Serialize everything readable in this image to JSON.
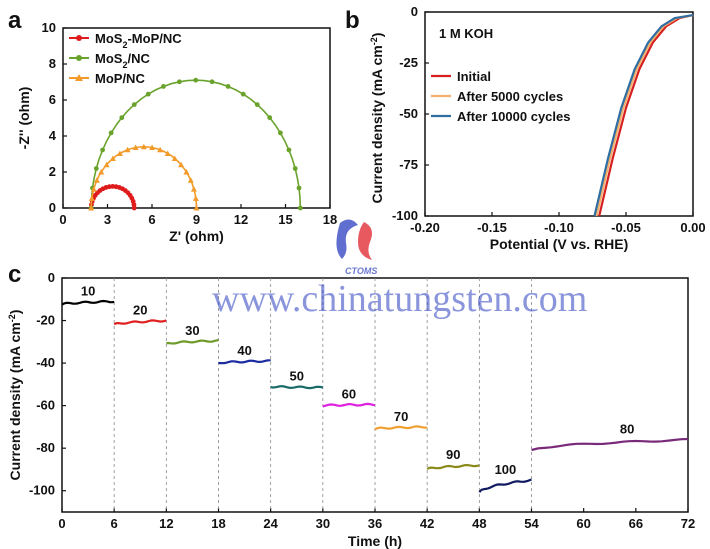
{
  "chart_data": [
    {
      "panel": "a",
      "type": "scatter",
      "xlabel": "Z' (ohm)",
      "ylabel": "-Z'' (ohm)",
      "xlim": [
        0,
        18
      ],
      "ylim": [
        0,
        10
      ],
      "xticks": [
        0,
        3,
        6,
        9,
        12,
        15,
        18
      ],
      "yticks": [
        0,
        2,
        4,
        6,
        8,
        10
      ],
      "legend_position": "top-left",
      "series": [
        {
          "name": "MoS2-MoP/NC",
          "name_sub": "2",
          "color": "#e01b1b",
          "marker": "circle",
          "z_start": 1.9,
          "z_end": 4.8,
          "peak": 1.2
        },
        {
          "name": "MoS2/NC",
          "name_sub": "2",
          "color": "#6aa32c",
          "marker": "circle",
          "z_start": 1.9,
          "z_end": 16.0,
          "peak": 7.1
        },
        {
          "name": "MoP/NC",
          "color": "#f29b2a",
          "marker": "triangle",
          "z_start": 1.9,
          "z_end": 9.0,
          "peak": 3.4
        }
      ]
    },
    {
      "panel": "b",
      "type": "line",
      "annotation": "1 M KOH",
      "xlabel": "Potential (V vs. RHE)",
      "ylabel": "Current density (mA cm-2)",
      "xlim": [
        -0.2,
        0.0
      ],
      "ylim": [
        -100,
        0
      ],
      "xticks": [
        "-0.20",
        "-0.15",
        "-0.10",
        "-0.05",
        "0.00"
      ],
      "yticks": [
        0,
        -25,
        -50,
        -75,
        -100
      ],
      "legend_position": "center-right",
      "series": [
        {
          "name": "Initial",
          "color": "#d62020",
          "x": [
            -0.07,
            -0.06,
            -0.05,
            -0.04,
            -0.03,
            -0.02,
            -0.01,
            0.0
          ],
          "y": [
            -100,
            -72,
            -47,
            -28,
            -15,
            -7,
            -3,
            -1.5
          ]
        },
        {
          "name": "After 5000 cycles",
          "color": "#f2b06a",
          "x": [
            -0.072,
            -0.062,
            -0.052,
            -0.042,
            -0.032,
            -0.022,
            -0.012,
            0.0
          ],
          "y": [
            -100,
            -72,
            -47,
            -28,
            -15,
            -7,
            -3,
            -1.5
          ]
        },
        {
          "name": "After 10000 cycles",
          "color": "#2f6ea3",
          "x": [
            -0.0735,
            -0.0635,
            -0.0535,
            -0.0435,
            -0.0335,
            -0.0235,
            -0.0135,
            0.0
          ],
          "y": [
            -100,
            -72,
            -47,
            -28,
            -15,
            -7,
            -3,
            -1.5
          ]
        }
      ]
    },
    {
      "panel": "c",
      "type": "line",
      "xlabel": "Time (h)",
      "ylabel": "Current density (mA cm-2)",
      "xlim": [
        0,
        72
      ],
      "ylim": [
        -110,
        0
      ],
      "xticks": [
        0,
        6,
        12,
        18,
        24,
        30,
        36,
        42,
        48,
        54,
        60,
        66,
        72
      ],
      "yticks": [
        0,
        -20,
        -40,
        -60,
        -80,
        -100
      ],
      "segments": [
        {
          "label": "10",
          "t0": 0,
          "t1": 6,
          "y0": -12.5,
          "y1": -11,
          "color": "#000000"
        },
        {
          "label": "20",
          "t0": 6,
          "t1": 12,
          "y0": -22,
          "y1": -20,
          "color": "#e02020"
        },
        {
          "label": "30",
          "t0": 12,
          "t1": 18,
          "y0": -31,
          "y1": -29.5,
          "color": "#6e9a2a"
        },
        {
          "label": "40",
          "t0": 18,
          "t1": 24,
          "y0": -40,
          "y1": -39,
          "color": "#1a2aa0"
        },
        {
          "label": "50",
          "t0": 24,
          "t1": 30,
          "y0": -51,
          "y1": -51.5,
          "color": "#1a6a6a"
        },
        {
          "label": "60",
          "t0": 30,
          "t1": 36,
          "y0": -60,
          "y1": -59.5,
          "color": "#e020e0"
        },
        {
          "label": "70",
          "t0": 36,
          "t1": 42,
          "y0": -71,
          "y1": -70,
          "color": "#f0a030"
        },
        {
          "label": "90",
          "t0": 42,
          "t1": 48,
          "y0": -90,
          "y1": -88,
          "color": "#8a8a1a"
        },
        {
          "label": "100",
          "t0": 48,
          "t1": 54,
          "y0": -101,
          "y1": -95,
          "color": "#101a60"
        },
        {
          "label": "80",
          "t0": 54,
          "t1": 72,
          "y0": -81,
          "y1": -76,
          "color": "#7a2a7a"
        }
      ]
    }
  ],
  "watermark": {
    "text": "www.chinatungsten.com",
    "logo_text": "CTOMS",
    "colors": [
      "#2b3fbf",
      "#e0202a"
    ]
  }
}
